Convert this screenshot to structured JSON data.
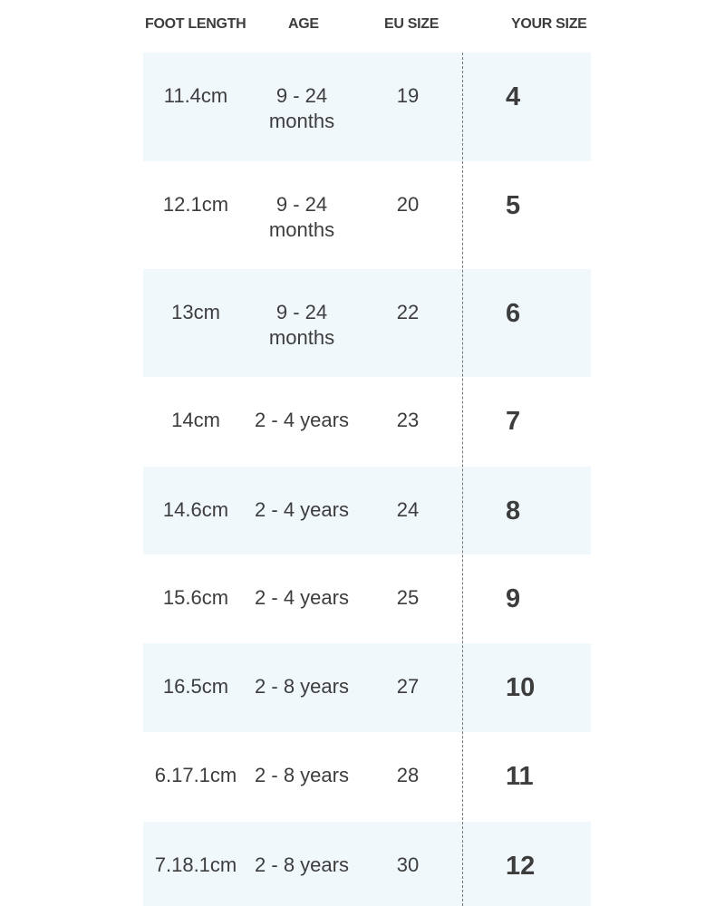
{
  "table": {
    "headers": [
      "FOOT LENGTH",
      "AGE",
      "EU SIZE",
      "YOUR SIZE"
    ],
    "rows": [
      [
        "11.4cm",
        "9 - 24 months",
        "19",
        "4"
      ],
      [
        "12.1cm",
        "9 - 24 months",
        "20",
        "5"
      ],
      [
        "13cm",
        "9 - 24 months",
        "22",
        "6"
      ],
      [
        "14cm",
        "2 - 4 years",
        "23",
        "7"
      ],
      [
        "14.6cm",
        "2 - 4 years",
        "24",
        "8"
      ],
      [
        "15.6cm",
        "2 - 4 years",
        "25",
        "9"
      ],
      [
        "16.5cm",
        "2 - 8 years",
        "27",
        "10"
      ],
      [
        "6.17.1cm",
        "2 - 8 years",
        "28",
        "11"
      ],
      [
        "7.18.1cm",
        "2 - 8 years",
        "30",
        "12"
      ]
    ]
  }
}
